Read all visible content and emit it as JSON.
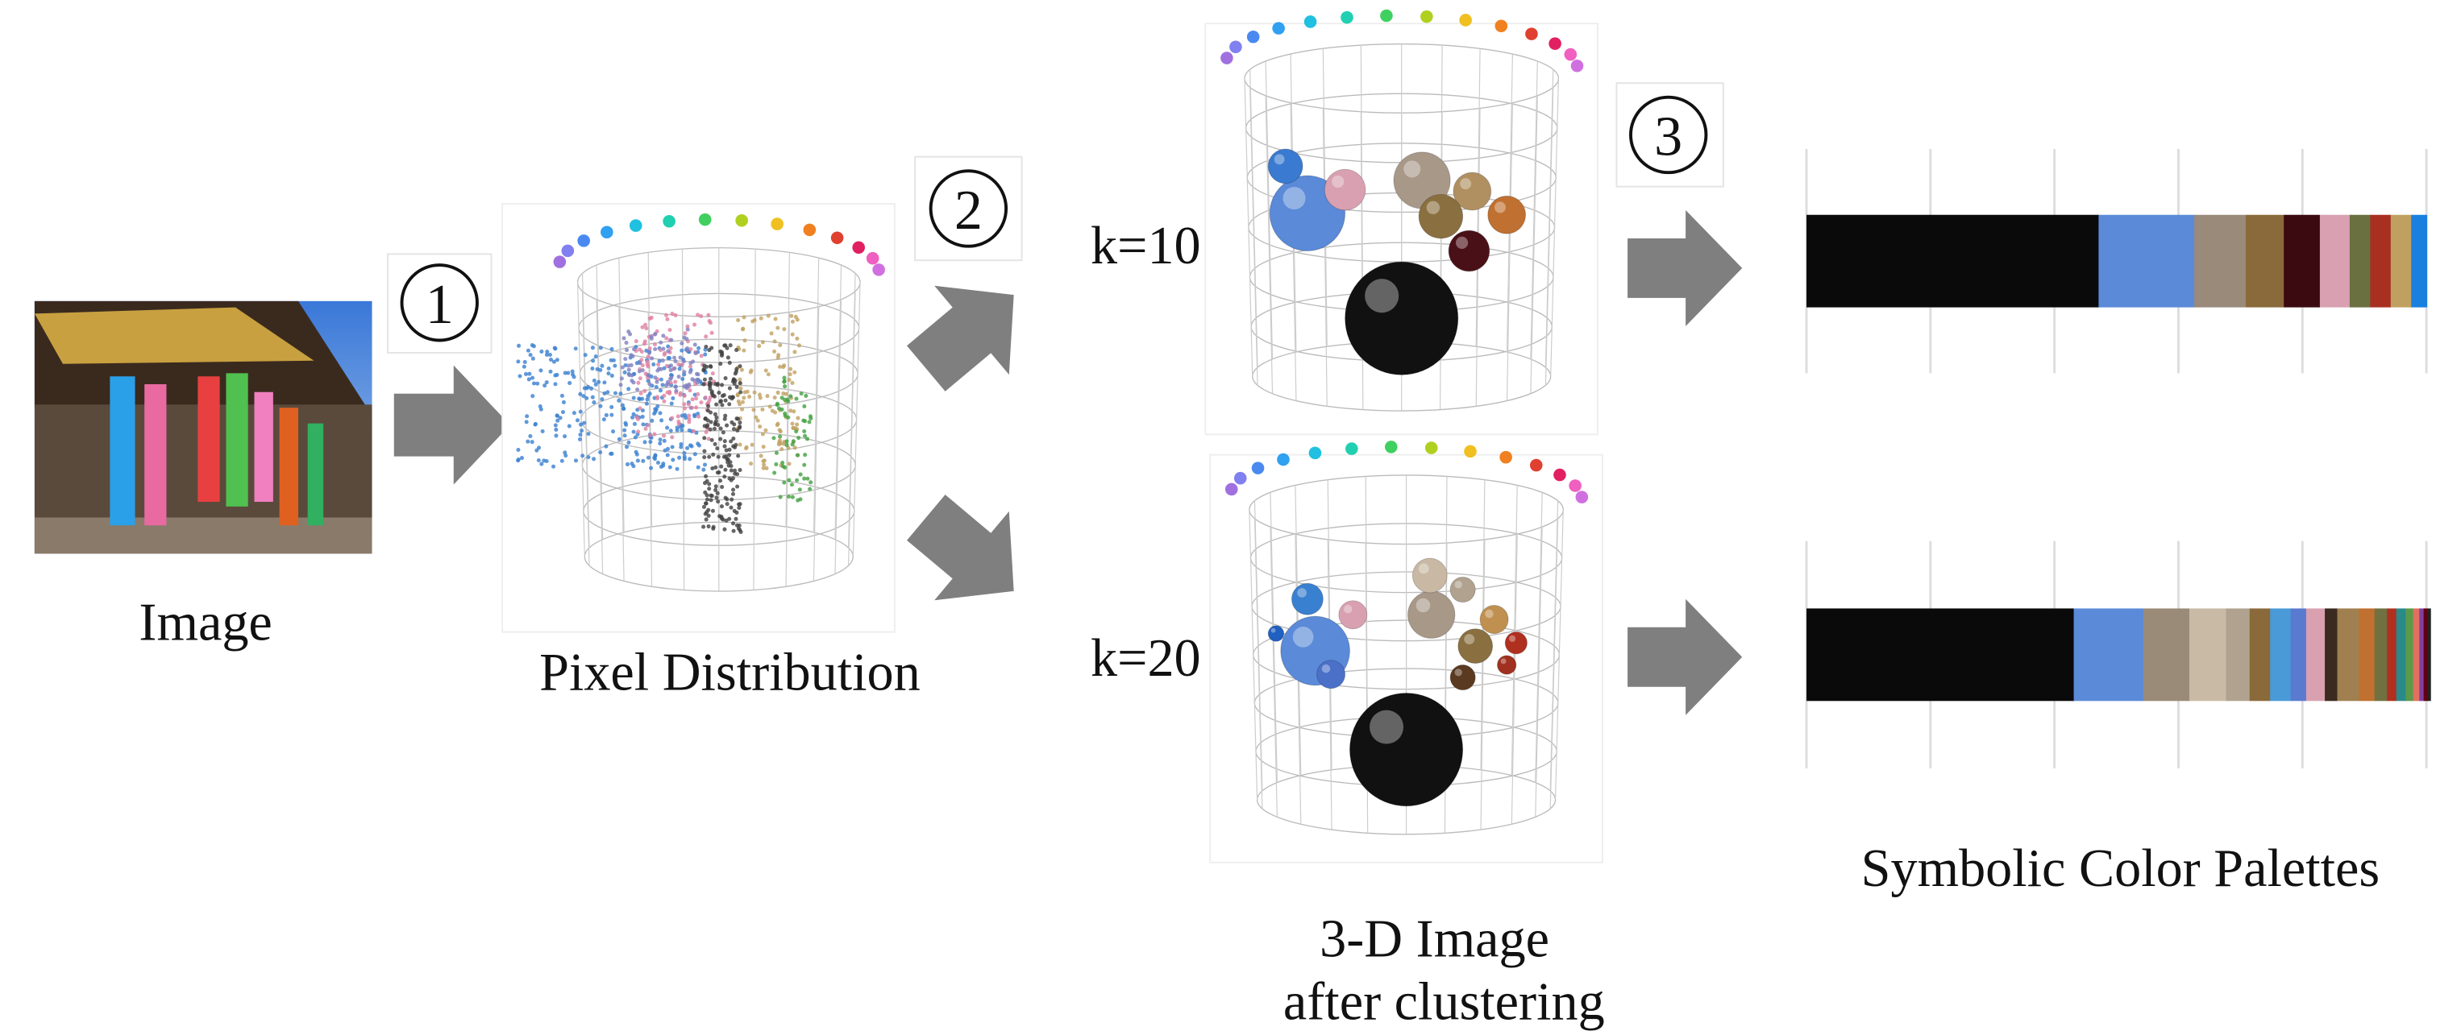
{
  "steps": [
    "1",
    "2",
    "3"
  ],
  "labels": {
    "image": "Image",
    "pixel_distribution": "Pixel Distribution",
    "k10": "k=10",
    "k20": "k=20",
    "clustered_line1": "3-D Image",
    "clustered_line2": "after clustering",
    "palettes": "Symbolic Color Palettes"
  },
  "palettes": [
    {
      "segments": [
        {
          "color": "#0a0a0a",
          "width": 47
        },
        {
          "color": "#5b8ad8",
          "width": 15.4
        },
        {
          "color": "#9a8a7a",
          "width": 8.3
        },
        {
          "color": "#8a6a3a",
          "width": 6.1
        },
        {
          "color": "#3a0a10",
          "width": 5.8
        },
        {
          "color": "#d8a0b0",
          "width": 4.8
        },
        {
          "color": "#6a7040",
          "width": 3.3
        },
        {
          "color": "#a83020",
          "width": 3.3
        },
        {
          "color": "#c0a060",
          "width": 3.3
        },
        {
          "color": "#1a80e0",
          "width": 2.5
        }
      ]
    },
    {
      "segments": [
        {
          "color": "#0a0a0a",
          "width": 43
        },
        {
          "color": "#5b8ad8",
          "width": 11.2
        },
        {
          "color": "#9a8a78",
          "width": 7.4
        },
        {
          "color": "#c9baa6",
          "width": 5.9
        },
        {
          "color": "#b0a28f",
          "width": 3.8
        },
        {
          "color": "#8a6a3a",
          "width": 3.3
        },
        {
          "color": "#4a9ad8",
          "width": 3.3
        },
        {
          "color": "#5a7ad0",
          "width": 2.5
        },
        {
          "color": "#d9a0b0",
          "width": 3
        },
        {
          "color": "#3a2a20",
          "width": 2
        },
        {
          "color": "#a08050",
          "width": 3.5
        },
        {
          "color": "#c07030",
          "width": 2.5
        },
        {
          "color": "#707040",
          "width": 2
        },
        {
          "color": "#b03020",
          "width": 1.5
        },
        {
          "color": "#2a8a8a",
          "width": 1.5
        },
        {
          "color": "#5a9a4a",
          "width": 1.2
        },
        {
          "color": "#e07060",
          "width": 1
        },
        {
          "color": "#8040a0",
          "width": 0.7
        },
        {
          "color": "#600010",
          "width": 0.6
        },
        {
          "color": "#222222",
          "width": 0.5
        }
      ]
    }
  ]
}
